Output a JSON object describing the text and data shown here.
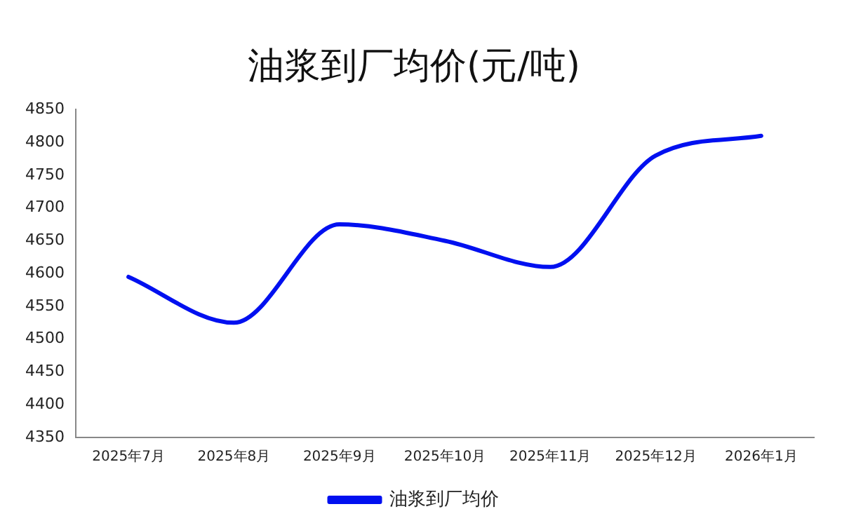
{
  "chart_data": {
    "type": "line",
    "title": "油浆到厂均价(元/吨)",
    "categories": [
      "2025年7月",
      "2025年8月",
      "2025年9月",
      "2025年10月",
      "2025年11月",
      "2025年12月",
      "2026年1月"
    ],
    "series": [
      {
        "name": "油浆到厂均价",
        "color": "#0010f0",
        "values": [
          4595,
          4525,
          4675,
          4650,
          4610,
          4780,
          4810
        ]
      }
    ],
    "ylim": [
      4350,
      4850
    ],
    "yticks": [
      4350,
      4400,
      4450,
      4500,
      4550,
      4600,
      4650,
      4700,
      4750,
      4800,
      4850
    ],
    "grid": false,
    "legend": "bottom",
    "marker": "none",
    "line_style": "solid"
  }
}
